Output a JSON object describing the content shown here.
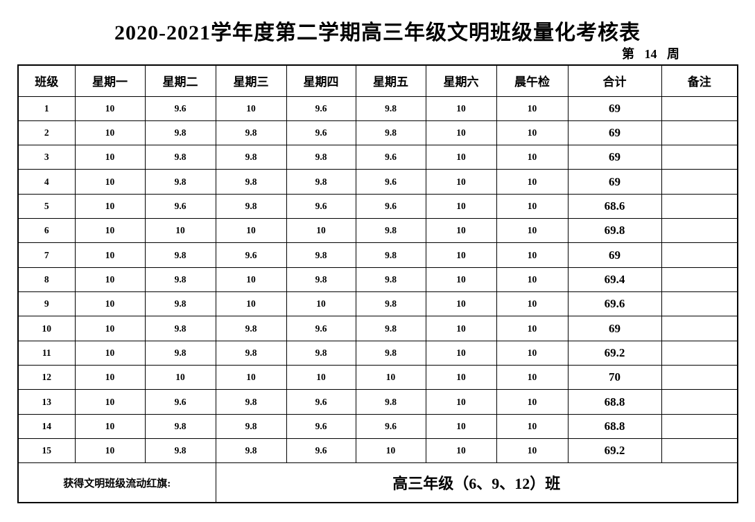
{
  "page": {
    "title": "2020-2021学年度第二学期高三年级文明班级量化考核表",
    "week_label": "第 14 周"
  },
  "table": {
    "columns": [
      "班级",
      "星期一",
      "星期二",
      "星期三",
      "星期四",
      "星期五",
      "星期六",
      "晨午检",
      "合计",
      "备注"
    ],
    "rows": [
      [
        "1",
        "10",
        "9.6",
        "10",
        "9.6",
        "9.8",
        "10",
        "10",
        "69",
        ""
      ],
      [
        "2",
        "10",
        "9.8",
        "9.8",
        "9.6",
        "9.8",
        "10",
        "10",
        "69",
        ""
      ],
      [
        "3",
        "10",
        "9.8",
        "9.8",
        "9.8",
        "9.6",
        "10",
        "10",
        "69",
        ""
      ],
      [
        "4",
        "10",
        "9.8",
        "9.8",
        "9.8",
        "9.6",
        "10",
        "10",
        "69",
        ""
      ],
      [
        "5",
        "10",
        "9.6",
        "9.8",
        "9.6",
        "9.6",
        "10",
        "10",
        "68.6",
        ""
      ],
      [
        "6",
        "10",
        "10",
        "10",
        "10",
        "9.8",
        "10",
        "10",
        "69.8",
        ""
      ],
      [
        "7",
        "10",
        "9.8",
        "9.6",
        "9.8",
        "9.8",
        "10",
        "10",
        "69",
        ""
      ],
      [
        "8",
        "10",
        "9.8",
        "10",
        "9.8",
        "9.8",
        "10",
        "10",
        "69.4",
        ""
      ],
      [
        "9",
        "10",
        "9.8",
        "10",
        "10",
        "9.8",
        "10",
        "10",
        "69.6",
        ""
      ],
      [
        "10",
        "10",
        "9.8",
        "9.8",
        "9.6",
        "9.8",
        "10",
        "10",
        "69",
        ""
      ],
      [
        "11",
        "10",
        "9.8",
        "9.8",
        "9.8",
        "9.8",
        "10",
        "10",
        "69.2",
        ""
      ],
      [
        "12",
        "10",
        "10",
        "10",
        "10",
        "10",
        "10",
        "10",
        "70",
        ""
      ],
      [
        "13",
        "10",
        "9.6",
        "9.8",
        "9.6",
        "9.8",
        "10",
        "10",
        "68.8",
        ""
      ],
      [
        "14",
        "10",
        "9.8",
        "9.8",
        "9.6",
        "9.6",
        "10",
        "10",
        "68.8",
        ""
      ],
      [
        "15",
        "10",
        "9.8",
        "9.8",
        "9.6",
        "10",
        "10",
        "10",
        "69.2",
        ""
      ]
    ],
    "footer": {
      "label": "获得文明班级流动红旗:",
      "value": "高三年级（6、9、12）班"
    }
  }
}
